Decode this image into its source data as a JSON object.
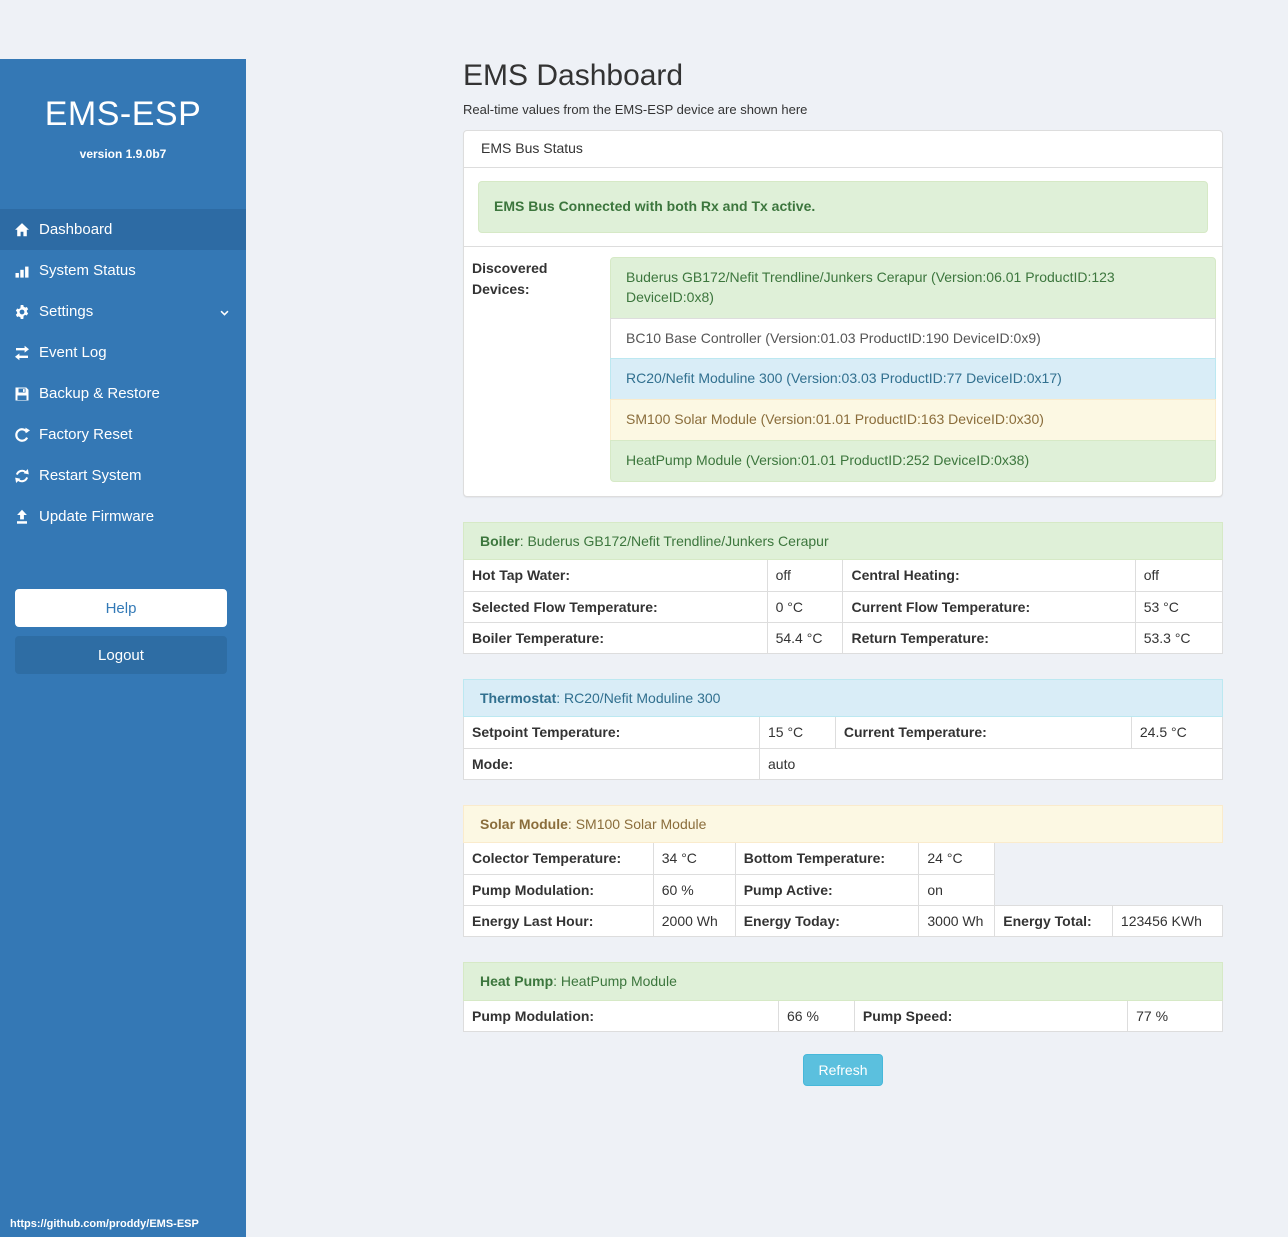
{
  "colors": {
    "sidebar": "#3478b5",
    "sidebar_active": "#2d6ba4",
    "accent_primary": "#337ab7",
    "logout_bg": "#2e6da4",
    "refresh_bg": "#5bc0de",
    "success_bg": "#dff0d8",
    "success_border": "#d6e9c6",
    "success_text": "#3c763d",
    "info_bg": "#d9edf7",
    "info_border": "#bce8f1",
    "info_text": "#31708f",
    "warning_bg": "#fcf8e3",
    "warning_border": "#faebcc",
    "warning_text": "#8a6d3b"
  },
  "sidebar": {
    "brand": "EMS-ESP",
    "version": "version 1.9.0b7",
    "items": [
      {
        "label": "Dashboard",
        "icon": "home-icon",
        "active": true
      },
      {
        "label": "System Status",
        "icon": "stats-icon"
      },
      {
        "label": "Settings",
        "icon": "gear-icon",
        "chevron": true
      },
      {
        "label": "Event Log",
        "icon": "transfer-arrows-icon"
      },
      {
        "label": "Backup & Restore",
        "icon": "floppy-disk-icon"
      },
      {
        "label": "Factory Reset",
        "icon": "reset-arrow-icon"
      },
      {
        "label": "Restart System",
        "icon": "sync-arrows-icon"
      },
      {
        "label": "Update Firmware",
        "icon": "upload-icon"
      }
    ],
    "help_label": "Help",
    "logout_label": "Logout",
    "footer_link": "https://github.com/proddy/EMS-ESP"
  },
  "header": {
    "title": "EMS Dashboard",
    "subtitle": "Real-time values from the EMS-ESP device are shown here"
  },
  "bus_panel": {
    "heading": "EMS Bus Status",
    "alert": "EMS Bus Connected with both Rx and Tx active.",
    "devices_label": "Discovered Devices:",
    "devices": [
      {
        "text": "Buderus GB172/Nefit Trendline/Junkers Cerapur (Version:06.01 ProductID:123 DeviceID:0x8)",
        "variant": "success"
      },
      {
        "text": "BC10 Base Controller (Version:01.03 ProductID:190 DeviceID:0x9)",
        "variant": "default"
      },
      {
        "text": "RC20/Nefit Moduline 300 (Version:03.03 ProductID:77 DeviceID:0x17)",
        "variant": "info"
      },
      {
        "text": "SM100 Solar Module (Version:01.01 ProductID:163 DeviceID:0x30)",
        "variant": "warning"
      },
      {
        "text": "HeatPump Module (Version:01.01 ProductID:252 DeviceID:0x38)",
        "variant": "success"
      }
    ]
  },
  "sections": [
    {
      "id": "boiler",
      "variant": "success",
      "title": "Boiler",
      "device": "Buderus GB172/Nefit Trendline/Junkers Cerapur",
      "rows": [
        [
          {
            "label": "Hot Tap Water:",
            "value": "off"
          },
          {
            "label": "Central Heating:",
            "value": "off"
          }
        ],
        [
          {
            "label": "Selected Flow Temperature:",
            "value": "0 °C"
          },
          {
            "label": "Current Flow Temperature:",
            "value": "53 °C"
          }
        ],
        [
          {
            "label": "Boiler Temperature:",
            "value": "54.4 °C"
          },
          {
            "label": "Return Temperature:",
            "value": "53.3 °C"
          }
        ]
      ]
    },
    {
      "id": "thermostat",
      "variant": "info",
      "title": "Thermostat",
      "device": "RC20/Nefit Moduline 300",
      "rows": [
        [
          {
            "label": "Setpoint Temperature:",
            "value": "15 °C"
          },
          {
            "label": "Current Temperature:",
            "value": "24.5 °C"
          }
        ],
        [
          {
            "label": "Mode:",
            "value": "auto",
            "span": 3
          }
        ]
      ]
    },
    {
      "id": "solar",
      "variant": "warning",
      "title": "Solar Module",
      "device": "SM100 Solar Module",
      "rows": [
        [
          {
            "label": "Colector Temperature:",
            "value": "34 °C"
          },
          {
            "label": "Bottom Temperature:",
            "value": "24 °C"
          }
        ],
        [
          {
            "label": "Pump Modulation:",
            "value": "60 %"
          },
          {
            "label": "Pump Active:",
            "value": "on"
          }
        ],
        [
          {
            "label": "Energy Last Hour:",
            "value": "2000 Wh"
          },
          {
            "label": "Energy Today:",
            "value": "3000 Wh"
          },
          {
            "label": "Energy Total:",
            "value": "123456 KWh"
          }
        ]
      ]
    },
    {
      "id": "heatpump",
      "variant": "success",
      "title": "Heat Pump",
      "device": "HeatPump Module",
      "rows": [
        [
          {
            "label": "Pump Modulation:",
            "value": "66 %"
          },
          {
            "label": "Pump Speed:",
            "value": "77 %"
          }
        ]
      ]
    }
  ],
  "refresh_label": "Refresh"
}
